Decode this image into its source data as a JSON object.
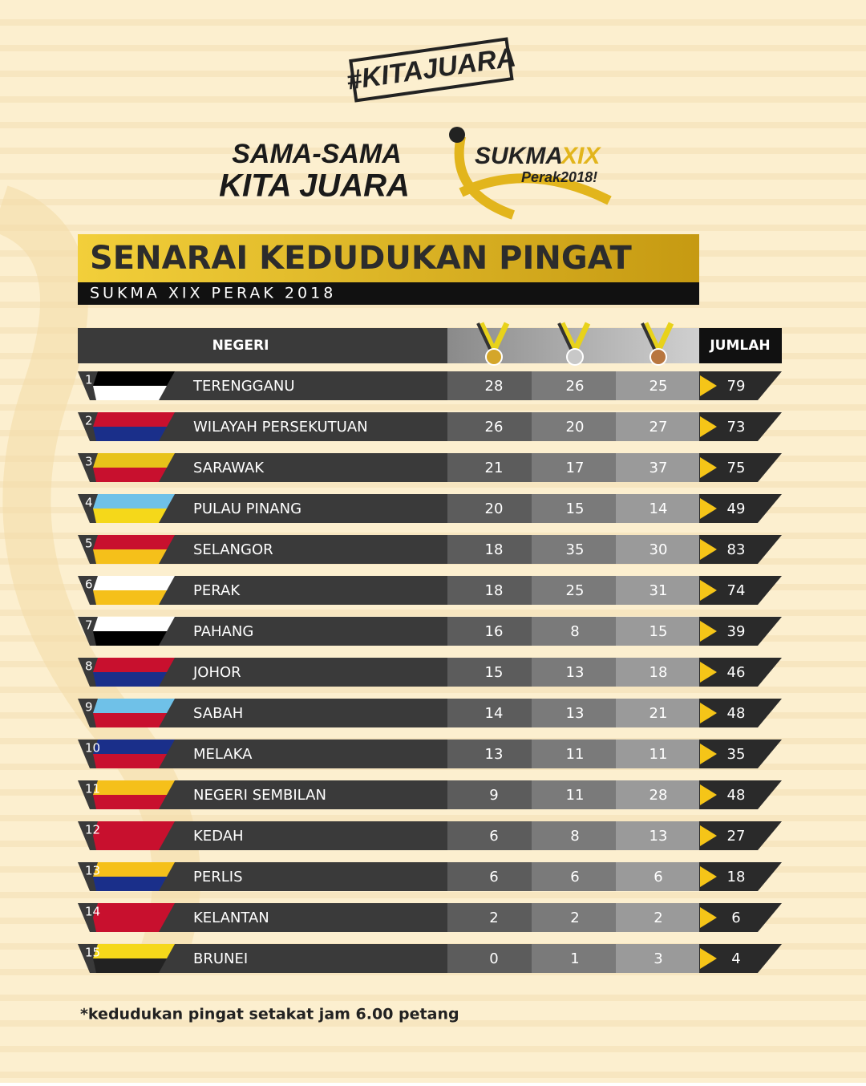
{
  "header": {
    "hashtag": "#KITAJUARA",
    "slogan": [
      "SAMA-SAMA",
      "KITA JUARA"
    ],
    "logo": [
      "SUKMA",
      "XIX",
      "Perak2018!"
    ]
  },
  "title": "SENARAI KEDUDUKAN PINGAT",
  "subtitle": "SUKMA XIX PERAK 2018",
  "table": {
    "columns": {
      "state": "NEGERI",
      "total": "JUMLAH"
    },
    "rows": [
      {
        "rank": 1,
        "state": "TERENGGANU",
        "gold": 28,
        "silver": 26,
        "bronze": 25,
        "total": 79
      },
      {
        "rank": 2,
        "state": "WILAYAH PERSEKUTUAN",
        "gold": 26,
        "silver": 20,
        "bronze": 27,
        "total": 73
      },
      {
        "rank": 3,
        "state": "SARAWAK",
        "gold": 21,
        "silver": 17,
        "bronze": 37,
        "total": 75
      },
      {
        "rank": 4,
        "state": "PULAU PINANG",
        "gold": 20,
        "silver": 15,
        "bronze": 14,
        "total": 49
      },
      {
        "rank": 5,
        "state": "SELANGOR",
        "gold": 18,
        "silver": 35,
        "bronze": 30,
        "total": 83
      },
      {
        "rank": 6,
        "state": "PERAK",
        "gold": 18,
        "silver": 25,
        "bronze": 31,
        "total": 74
      },
      {
        "rank": 7,
        "state": "PAHANG",
        "gold": 16,
        "silver": 8,
        "bronze": 15,
        "total": 39
      },
      {
        "rank": 8,
        "state": "JOHOR",
        "gold": 15,
        "silver": 13,
        "bronze": 18,
        "total": 46
      },
      {
        "rank": 9,
        "state": "SABAH",
        "gold": 14,
        "silver": 13,
        "bronze": 21,
        "total": 48
      },
      {
        "rank": 10,
        "state": "MELAKA",
        "gold": 13,
        "silver": 11,
        "bronze": 11,
        "total": 35
      },
      {
        "rank": 11,
        "state": "NEGERI SEMBILAN",
        "gold": 9,
        "silver": 11,
        "bronze": 28,
        "total": 48
      },
      {
        "rank": 12,
        "state": "KEDAH",
        "gold": 6,
        "silver": 8,
        "bronze": 13,
        "total": 27
      },
      {
        "rank": 13,
        "state": "PERLIS",
        "gold": 6,
        "silver": 6,
        "bronze": 6,
        "total": 18
      },
      {
        "rank": 14,
        "state": "KELANTAN",
        "gold": 2,
        "silver": 2,
        "bronze": 2,
        "total": 6
      },
      {
        "rank": 15,
        "state": "BRUNEI",
        "gold": 0,
        "silver": 1,
        "bronze": 3,
        "total": 4
      }
    ]
  },
  "footnote": "*kedudukan pingat setakat jam 6.00 petang"
}
